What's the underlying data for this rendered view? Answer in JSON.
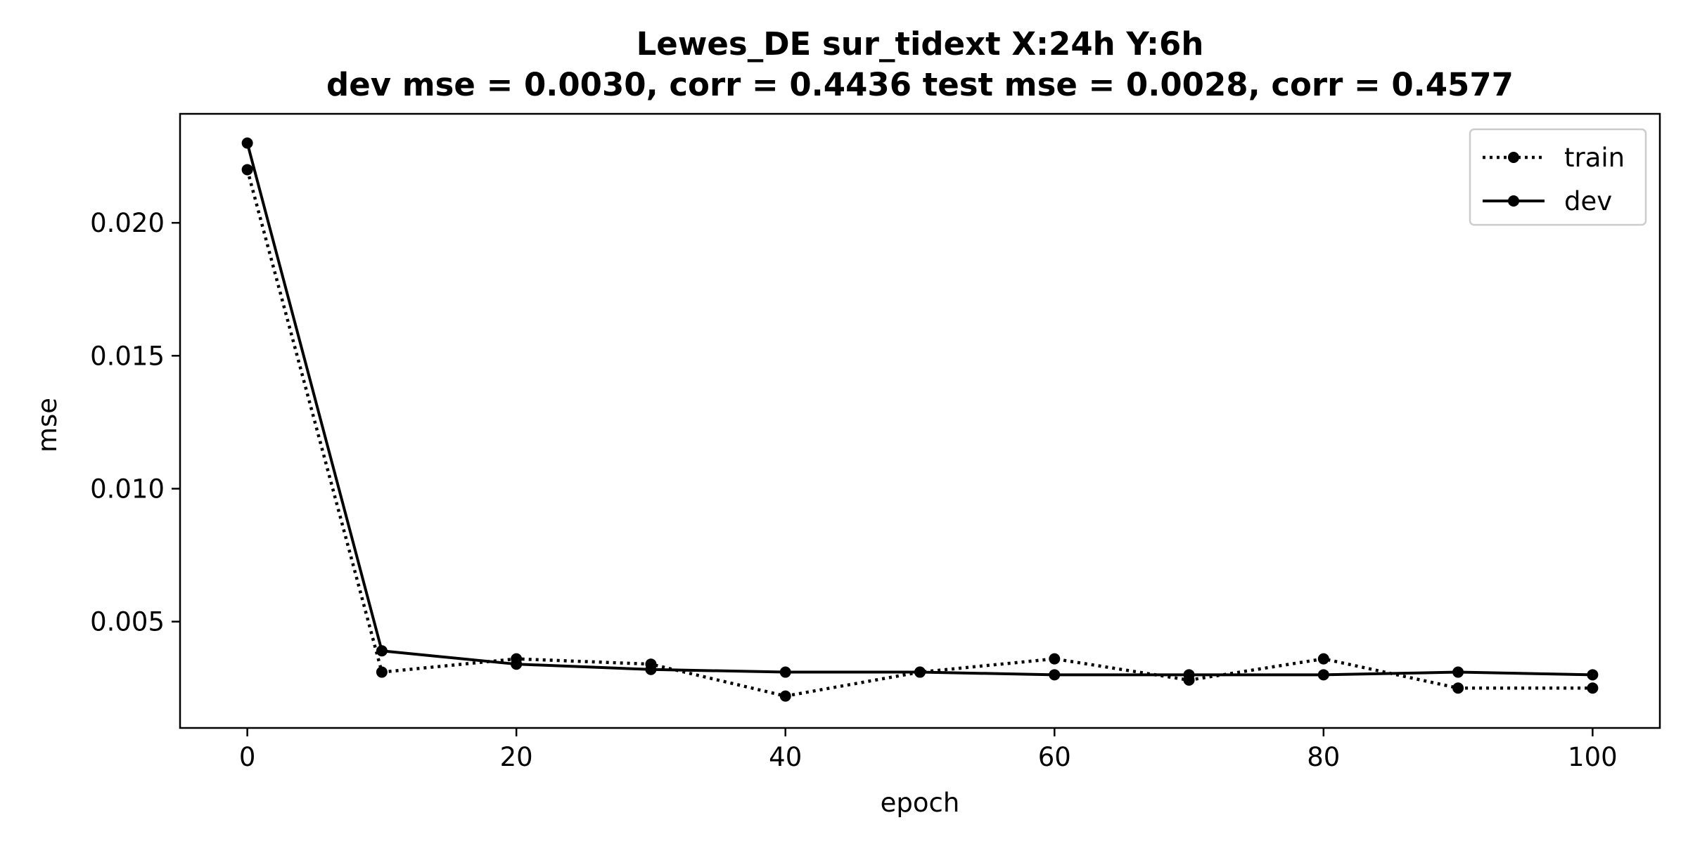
{
  "chart_data": {
    "type": "line",
    "title": "Lewes_DE   sur_tidext   X:24h   Y:6h",
    "subtitle": "dev mse = 0.0030, corr = 0.4436   test mse = 0.0028, corr = 0.4577",
    "xlabel": "epoch",
    "ylabel": "mse",
    "xlim": [
      -5,
      105
    ],
    "ylim": [
      0.001,
      0.0241
    ],
    "x_ticks": [
      0,
      20,
      40,
      60,
      80,
      100
    ],
    "x_tick_labels": [
      "0",
      "20",
      "40",
      "60",
      "80",
      "100"
    ],
    "y_ticks": [
      0.005,
      0.01,
      0.015,
      0.02
    ],
    "y_tick_labels": [
      "0.005",
      "0.010",
      "0.015",
      "0.020"
    ],
    "grid": false,
    "legend_position": "top-right",
    "x": [
      0,
      10,
      20,
      30,
      40,
      50,
      60,
      70,
      80,
      90,
      100
    ],
    "series": [
      {
        "name": "train",
        "line_style": "dotted",
        "color": "#000000",
        "values": [
          0.022,
          0.0031,
          0.0036,
          0.0034,
          0.0022,
          0.0031,
          0.0036,
          0.0028,
          0.0036,
          0.0025,
          0.0025
        ]
      },
      {
        "name": "dev",
        "line_style": "solid",
        "color": "#000000",
        "values": [
          0.023,
          0.0039,
          0.0034,
          0.0032,
          0.0031,
          0.0031,
          0.003,
          0.003,
          0.003,
          0.0031,
          0.003
        ]
      }
    ]
  }
}
